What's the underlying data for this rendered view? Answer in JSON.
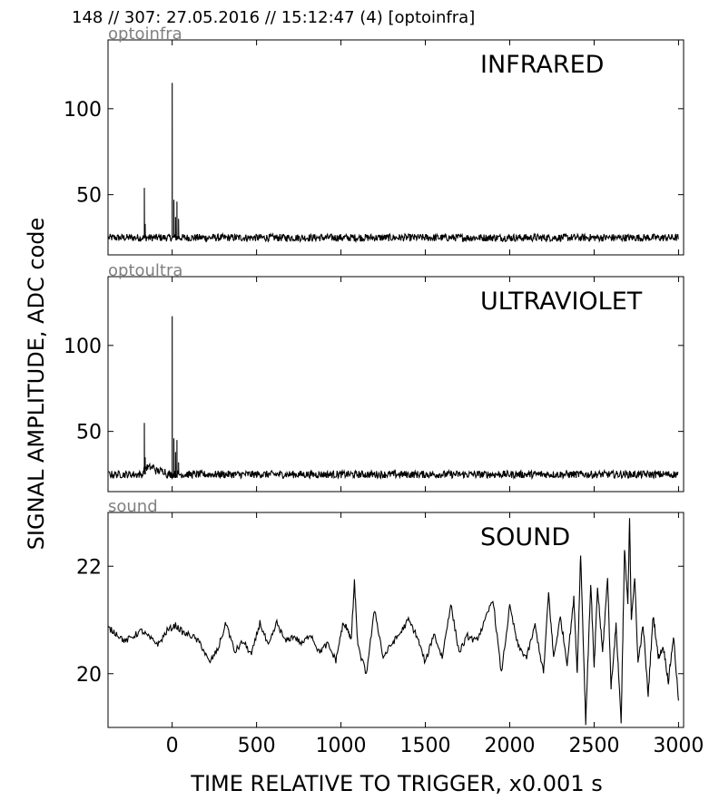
{
  "header": "148 // 307:   27.05.2016 // 15:12:47 (4)  [optoinfra]",
  "ylabel": "SIGNAL AMPLITUDE,  ADC code",
  "xlabel": "TIME RELATIVE TO TRIGGER,   x0.001 s",
  "chart_data": [
    {
      "type": "line",
      "tag": "optoinfra",
      "title": "INFRARED",
      "xlim": [
        -380,
        3030
      ],
      "ylim": [
        15,
        140
      ],
      "yticks": [
        50,
        100
      ],
      "xticks": [
        0,
        500,
        1000,
        1500,
        2000,
        2500,
        3000
      ],
      "show_xtick_labels": false,
      "baseline": 25,
      "noise": 2.2,
      "spikes": [
        [
          -165,
          54
        ],
        [
          -160,
          33
        ],
        [
          0,
          115
        ],
        [
          10,
          47
        ],
        [
          20,
          37
        ],
        [
          28,
          46
        ],
        [
          38,
          36
        ]
      ],
      "bursts": []
    },
    {
      "type": "line",
      "tag": "optoultra",
      "title": "ULTRAVIOLET",
      "xlim": [
        -380,
        3030
      ],
      "ylim": [
        15,
        140
      ],
      "yticks": [
        50,
        100
      ],
      "xticks": [
        0,
        500,
        1000,
        1500,
        2000,
        2500,
        3000
      ],
      "show_xtick_labels": false,
      "baseline": 25,
      "noise": 2.2,
      "spikes": [
        [
          -165,
          55
        ],
        [
          -160,
          35
        ],
        [
          0,
          117
        ],
        [
          10,
          46
        ],
        [
          20,
          38
        ],
        [
          28,
          45
        ],
        [
          38,
          32
        ]
      ],
      "bursts": [
        [
          -170,
          -100,
          29
        ],
        [
          -100,
          -40,
          27
        ]
      ]
    },
    {
      "type": "line",
      "tag": "sound",
      "title": "SOUND",
      "xlim": [
        -380,
        3030
      ],
      "ylim": [
        19,
        23
      ],
      "yticks": [
        20,
        22
      ],
      "xticks": [
        0,
        500,
        1000,
        1500,
        2000,
        2500,
        3000
      ],
      "show_xtick_labels": true,
      "x": [
        -380,
        -330,
        -280,
        -230,
        -180,
        -130,
        -80,
        -30,
        20,
        70,
        120,
        170,
        220,
        270,
        320,
        370,
        420,
        470,
        520,
        570,
        620,
        670,
        720,
        770,
        820,
        870,
        920,
        970,
        1010,
        1040,
        1060,
        1080,
        1100,
        1150,
        1200,
        1250,
        1300,
        1350,
        1400,
        1450,
        1500,
        1550,
        1600,
        1650,
        1700,
        1750,
        1800,
        1850,
        1900,
        1950,
        2000,
        2050,
        2100,
        2150,
        2200,
        2230,
        2260,
        2300,
        2340,
        2380,
        2400,
        2420,
        2450,
        2480,
        2500,
        2520,
        2550,
        2580,
        2600,
        2630,
        2660,
        2680,
        2700,
        2710,
        2720,
        2740,
        2760,
        2790,
        2820,
        2850,
        2880,
        2910,
        2940,
        2970,
        3000
      ],
      "y": [
        20.85,
        20.75,
        20.6,
        20.7,
        20.8,
        20.65,
        20.55,
        20.8,
        20.9,
        20.75,
        20.7,
        20.55,
        20.2,
        20.45,
        20.95,
        20.4,
        20.6,
        20.35,
        20.95,
        20.5,
        20.95,
        20.6,
        20.7,
        20.55,
        20.75,
        20.4,
        20.55,
        20.25,
        20.9,
        20.85,
        20.6,
        21.7,
        20.5,
        20.0,
        21.2,
        20.3,
        20.55,
        20.75,
        21.0,
        20.7,
        20.2,
        20.75,
        20.3,
        21.3,
        20.4,
        20.7,
        20.6,
        20.95,
        21.4,
        20.0,
        21.25,
        20.5,
        20.3,
        20.9,
        20.0,
        21.5,
        20.3,
        21.05,
        20.2,
        21.4,
        20.0,
        22.25,
        19.1,
        21.7,
        20.1,
        21.6,
        20.4,
        21.8,
        19.75,
        20.9,
        19.1,
        22.3,
        21.3,
        22.9,
        21.0,
        21.8,
        20.2,
        20.9,
        19.6,
        21.1,
        20.3,
        20.5,
        19.85,
        20.7,
        19.5
      ]
    }
  ]
}
